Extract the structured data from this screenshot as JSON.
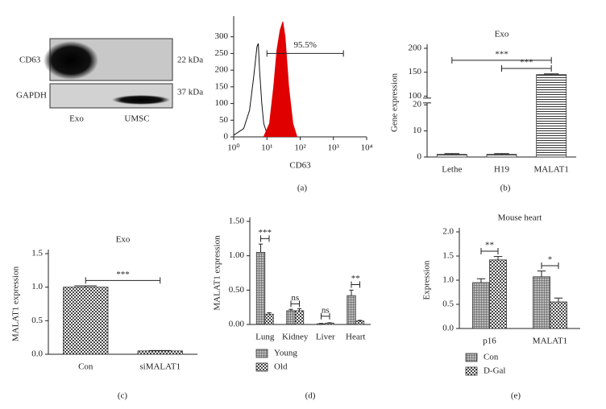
{
  "panel_labels": [
    "(a)",
    "(b)",
    "(c)",
    "(d)",
    "(e)"
  ],
  "blot": {
    "rows": [
      {
        "name": "CD63",
        "size": "22 kDa"
      },
      {
        "name": "GAPDH",
        "size": "37 kDa"
      }
    ],
    "lanes": [
      "Exo",
      "UMSC"
    ]
  },
  "chart_data": [
    {
      "type": "line",
      "xlabel": "CD63",
      "xscale": "log",
      "xlim": [
        1,
        10000
      ],
      "xticks": [
        {
          "value": 1,
          "label": "10⁰"
        },
        {
          "value": 10,
          "label": "10¹"
        },
        {
          "value": 100,
          "label": "10²"
        },
        {
          "value": 1000,
          "label": "10³"
        },
        {
          "value": 10000,
          "label": "10⁴"
        }
      ],
      "ylim": [
        0,
        350
      ],
      "yticks": [
        0,
        50,
        100,
        150,
        200,
        250,
        300
      ],
      "series": [
        {
          "x": [
            1,
            2,
            3,
            4,
            5,
            5.5,
            6,
            7,
            8,
            10,
            12
          ],
          "values": [
            5,
            25,
            80,
            180,
            270,
            280,
            200,
            100,
            40,
            10,
            0
          ],
          "color": "#111111",
          "fill": "none"
        },
        {
          "x": [
            8,
            12,
            16,
            20,
            25,
            30,
            35,
            45,
            60,
            80
          ],
          "values": [
            0,
            40,
            150,
            260,
            320,
            345,
            300,
            150,
            40,
            0
          ],
          "color": "#e00000",
          "fill": "#e00000"
        }
      ],
      "gate": {
        "label": "95.5%",
        "x": [
          10,
          2000
        ],
        "y": 250
      }
    },
    {
      "type": "bar",
      "title": "Exo",
      "ylabel": "Gene expression",
      "categories": [
        "Lethe",
        "H19",
        "MALAT1"
      ],
      "values": [
        1,
        1,
        145
      ],
      "errors": [
        0.3,
        0.3,
        1.5
      ],
      "pattern": "hlines",
      "ylim": [
        0,
        200
      ],
      "ybreak": [
        20,
        100
      ],
      "yticks": [
        0,
        10,
        20,
        100,
        150,
        200
      ],
      "annotations": [
        {
          "text": "***",
          "between": [
            "Lethe",
            "MALAT1"
          ],
          "y": 175
        },
        {
          "text": "***",
          "between": [
            "H19",
            "MALAT1"
          ],
          "y": 158
        }
      ]
    },
    {
      "type": "bar",
      "title": "Exo",
      "ylabel": "MALAT1 expression",
      "categories": [
        "Con",
        "siMALAT1"
      ],
      "values": [
        1.0,
        0.05
      ],
      "errors": [
        0.02,
        0.005
      ],
      "pattern": "checker",
      "ylim": [
        0,
        1.5
      ],
      "yticks": [
        {
          "value": 0,
          "label": "0.0"
        },
        {
          "value": 0.5,
          "label": "0.5"
        },
        {
          "value": 1,
          "label": "1.0"
        },
        {
          "value": 1.5,
          "label": "1.5"
        }
      ],
      "annotations": [
        {
          "text": "***",
          "between": [
            "Con",
            "siMALAT1"
          ],
          "y": 1.1
        }
      ]
    },
    {
      "type": "bar",
      "ylabel": "MALAT1 expression",
      "categories": [
        "Lung",
        "Kidney",
        "Liver",
        "Heart"
      ],
      "series": [
        {
          "name": "Young",
          "values": [
            1.05,
            0.2,
            0.01,
            0.42
          ],
          "errors": [
            0.12,
            0.02,
            0.005,
            0.08
          ],
          "pattern": "grid"
        },
        {
          "name": "Old",
          "values": [
            0.15,
            0.2,
            0.02,
            0.05
          ],
          "errors": [
            0.02,
            0.03,
            0.005,
            0.01
          ],
          "pattern": "checker"
        }
      ],
      "ylim": [
        0,
        1.5
      ],
      "yticks": [
        {
          "value": 0,
          "label": "0.00"
        },
        {
          "value": 0.5,
          "label": "0.50"
        },
        {
          "value": 1,
          "label": "1.00"
        },
        {
          "value": 1.5,
          "label": "1.50"
        }
      ],
      "legend": "bottom",
      "annotations": [
        {
          "text": "***",
          "category": "Lung",
          "y": 1.25
        },
        {
          "text": "ns",
          "category": "Kidney",
          "y": 0.3
        },
        {
          "text": "ns",
          "category": "Liver",
          "y": 0.12
        },
        {
          "text": "**",
          "category": "Heart",
          "y": 0.58
        }
      ]
    },
    {
      "type": "bar",
      "title": "Mouse heart",
      "ylabel": "Expression",
      "categories": [
        "p16",
        "MALAT1"
      ],
      "series": [
        {
          "name": "Con",
          "values": [
            0.95,
            1.07
          ],
          "errors": [
            0.08,
            0.12
          ],
          "pattern": "grid"
        },
        {
          "name": "D-Gal",
          "values": [
            1.42,
            0.55
          ],
          "errors": [
            0.07,
            0.08
          ],
          "pattern": "checker"
        }
      ],
      "ylim": [
        0,
        2
      ],
      "yticks": [
        {
          "value": 0,
          "label": "0.0"
        },
        {
          "value": 0.5,
          "label": "0.5"
        },
        {
          "value": 1,
          "label": "1.0"
        },
        {
          "value": 1.5,
          "label": "1.5"
        },
        {
          "value": 2,
          "label": "2.0"
        }
      ],
      "legend": "bottom",
      "annotations": [
        {
          "text": "**",
          "category": "p16",
          "y": 1.6
        },
        {
          "text": "*",
          "category": "MALAT1",
          "y": 1.3
        }
      ]
    }
  ]
}
